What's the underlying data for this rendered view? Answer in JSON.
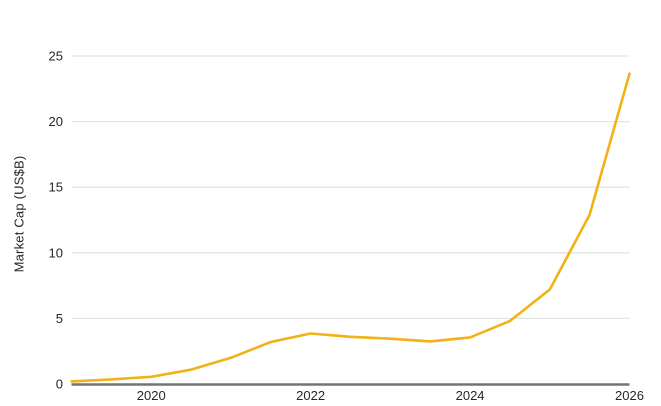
{
  "chart_data": {
    "type": "line",
    "title": "",
    "xlabel": "",
    "ylabel": "Market Cap (US$B)",
    "x": [
      2019,
      2019.5,
      2020,
      2020.5,
      2021,
      2021.5,
      2022,
      2022.5,
      2023,
      2023.5,
      2024,
      2024.5,
      2025,
      2025.5,
      2026
    ],
    "series": [
      {
        "name": "Market Cap",
        "values": [
          0.2,
          0.35,
          0.55,
          1.1,
          2.0,
          3.2,
          3.85,
          3.6,
          3.45,
          3.25,
          3.55,
          4.8,
          7.2,
          12.9,
          23.65
        ]
      }
    ],
    "xlim": [
      2019,
      2026
    ],
    "ylim": [
      0,
      25
    ],
    "yticks": [
      0,
      5,
      10,
      15,
      20,
      25
    ],
    "xticks": [
      2020,
      2022,
      2024,
      2026
    ],
    "grid": "horizontal-only",
    "legend_position": "none",
    "colors": {
      "line": "#F0B214",
      "gridline": "#E3E3E3",
      "axis_line": "#737373",
      "text": "#262626",
      "background": "#FFFFFF"
    }
  }
}
